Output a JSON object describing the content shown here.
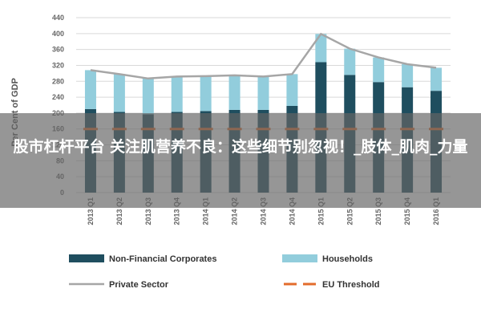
{
  "chart_data": {
    "type": "bar",
    "stacked": true,
    "ylabel": "Per Cent of GDP",
    "ylim": [
      0,
      440
    ],
    "yticks": [
      0,
      40,
      80,
      120,
      160,
      200,
      240,
      280,
      320,
      360,
      400,
      440
    ],
    "grid": true,
    "legend_position": "bottom",
    "categories": [
      "2013 Q1",
      "2013 Q2",
      "2013 Q3",
      "2013 Q4",
      "2014 Q1",
      "2014 Q2",
      "2014 Q3",
      "2014 Q4",
      "2015 Q1",
      "2015 Q2",
      "2015 Q3",
      "2015 Q4",
      "2016 Q1"
    ],
    "series": [
      {
        "name": "Non-Financial Corporates",
        "kind": "bar",
        "color": "#1f4e5f",
        "values": [
          210,
          203,
          197,
          203,
          205,
          208,
          208,
          218,
          328,
          296,
          278,
          265,
          256
        ]
      },
      {
        "name": "Households",
        "kind": "bar",
        "color": "#92cddc",
        "values": [
          98,
          95,
          90,
          89,
          88,
          87,
          84,
          80,
          71,
          66,
          62,
          58,
          58
        ]
      },
      {
        "name": "Private Sector",
        "kind": "line",
        "color": "#a6a6a6",
        "values": [
          308,
          298,
          287,
          292,
          293,
          295,
          292,
          298,
          399,
          362,
          340,
          323,
          314
        ]
      },
      {
        "name": "EU Threshold",
        "kind": "dashed",
        "color": "#e36c2c",
        "values": [
          160,
          160,
          160,
          160,
          160,
          160,
          160,
          160,
          160,
          160,
          160,
          160,
          160
        ]
      }
    ]
  },
  "overlay": {
    "title": "股市杠杆平台 关注肌营养不良：这些细节别忽视！_肢体_肌肉_力量"
  }
}
